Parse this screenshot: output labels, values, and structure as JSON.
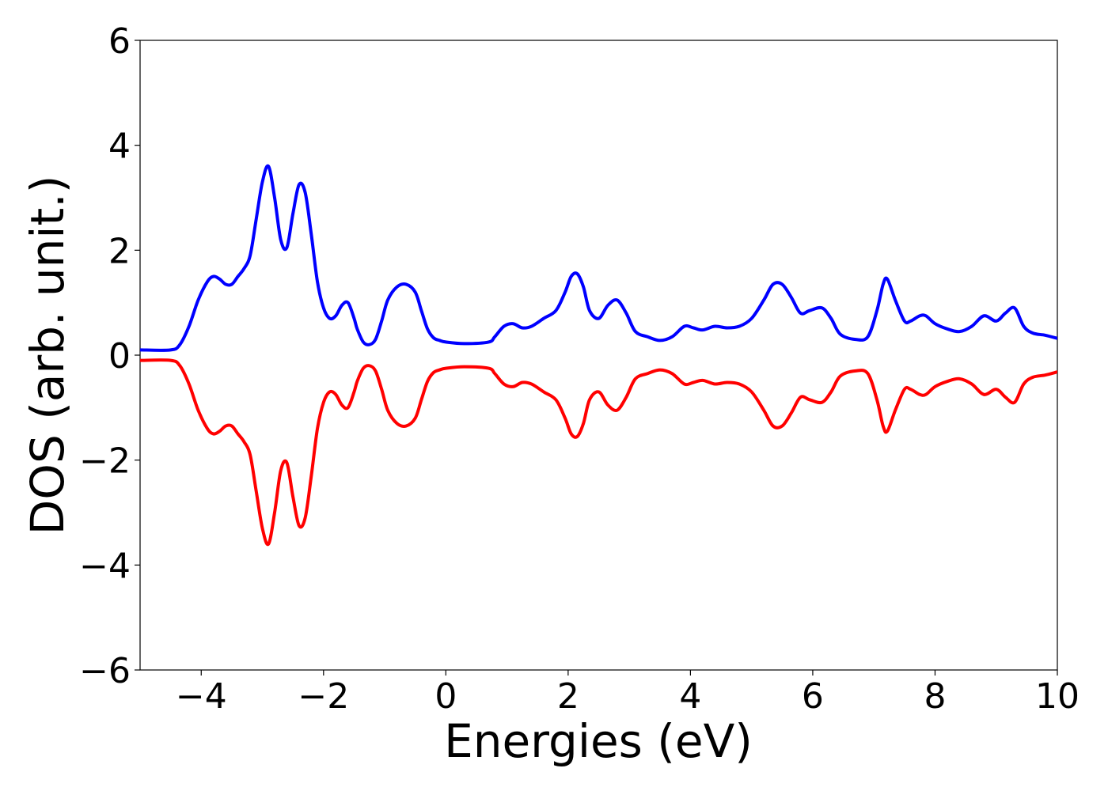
{
  "chart_data": {
    "type": "line",
    "title": "",
    "xlabel": "Energies (eV)",
    "ylabel": "DOS (arb. unit.)",
    "xlim": [
      -5,
      10
    ],
    "ylim": [
      -6,
      6
    ],
    "x_ticks": [
      -4,
      -2,
      0,
      2,
      4,
      6,
      8,
      10
    ],
    "x_tick_labels": [
      "−4",
      "−2",
      "0",
      "2",
      "4",
      "6",
      "8",
      "10"
    ],
    "y_ticks": [
      -6,
      -4,
      -2,
      0,
      2,
      4,
      6
    ],
    "y_tick_labels": [
      "−6",
      "−4",
      "−2",
      "0",
      "2",
      "4",
      "6"
    ],
    "grid": false,
    "legend": "none",
    "series": [
      {
        "color": "#0000ff",
        "x": [
          -5,
          -4.5,
          -4.35,
          -4.2,
          -4.05,
          -3.9,
          -3.8,
          -3.7,
          -3.6,
          -3.5,
          -3.4,
          -3.3,
          -3.2,
          -3.1,
          -3.0,
          -2.9,
          -2.8,
          -2.7,
          -2.6,
          -2.5,
          -2.4,
          -2.3,
          -2.2,
          -2.1,
          -2.0,
          -1.9,
          -1.8,
          -1.7,
          -1.6,
          -1.5,
          -1.45,
          -1.35,
          -1.25,
          -1.15,
          -1.05,
          -0.95,
          -0.8,
          -0.65,
          -0.5,
          -0.4,
          -0.3,
          -0.2,
          -0.1,
          0.0,
          0.3,
          0.7,
          0.8,
          0.95,
          1.1,
          1.25,
          1.4,
          1.6,
          1.8,
          1.95,
          2.05,
          2.15,
          2.25,
          2.35,
          2.5,
          2.65,
          2.8,
          2.95,
          3.1,
          3.3,
          3.5,
          3.7,
          3.9,
          4.05,
          4.2,
          4.4,
          4.6,
          4.8,
          5.0,
          5.2,
          5.35,
          5.5,
          5.65,
          5.8,
          5.95,
          6.15,
          6.3,
          6.45,
          6.7,
          6.9,
          7.05,
          7.15,
          7.22,
          7.35,
          7.5,
          7.6,
          7.75,
          7.85,
          8.0,
          8.2,
          8.4,
          8.6,
          8.8,
          9.0,
          9.15,
          9.3,
          9.45,
          9.6,
          9.8,
          10.0
        ],
        "y": [
          0.1,
          0.1,
          0.2,
          0.55,
          1.05,
          1.4,
          1.5,
          1.45,
          1.35,
          1.35,
          1.5,
          1.65,
          1.9,
          2.6,
          3.3,
          3.6,
          3.0,
          2.2,
          2.05,
          2.7,
          3.25,
          3.1,
          2.3,
          1.4,
          0.9,
          0.7,
          0.75,
          0.95,
          1.0,
          0.7,
          0.5,
          0.25,
          0.2,
          0.3,
          0.65,
          1.05,
          1.3,
          1.35,
          1.2,
          0.85,
          0.5,
          0.33,
          0.28,
          0.25,
          0.22,
          0.25,
          0.35,
          0.55,
          0.6,
          0.52,
          0.55,
          0.7,
          0.85,
          1.2,
          1.5,
          1.55,
          1.3,
          0.85,
          0.7,
          0.95,
          1.05,
          0.8,
          0.45,
          0.35,
          0.28,
          0.35,
          0.55,
          0.52,
          0.48,
          0.55,
          0.52,
          0.55,
          0.7,
          1.05,
          1.35,
          1.35,
          1.1,
          0.8,
          0.85,
          0.9,
          0.7,
          0.4,
          0.3,
          0.35,
          0.85,
          1.35,
          1.45,
          1.05,
          0.65,
          0.65,
          0.75,
          0.75,
          0.6,
          0.5,
          0.45,
          0.55,
          0.75,
          0.65,
          0.8,
          0.9,
          0.55,
          0.42,
          0.38,
          0.32
        ]
      },
      {
        "color": "#ff0000",
        "x": [
          -5,
          -4.5,
          -4.35,
          -4.2,
          -4.05,
          -3.9,
          -3.8,
          -3.7,
          -3.6,
          -3.5,
          -3.4,
          -3.3,
          -3.2,
          -3.1,
          -3.0,
          -2.9,
          -2.8,
          -2.7,
          -2.6,
          -2.5,
          -2.4,
          -2.3,
          -2.2,
          -2.1,
          -2.0,
          -1.9,
          -1.8,
          -1.7,
          -1.6,
          -1.5,
          -1.45,
          -1.35,
          -1.25,
          -1.15,
          -1.05,
          -0.95,
          -0.8,
          -0.65,
          -0.5,
          -0.4,
          -0.3,
          -0.2,
          -0.1,
          0.0,
          0.3,
          0.7,
          0.8,
          0.95,
          1.1,
          1.25,
          1.4,
          1.6,
          1.8,
          1.95,
          2.05,
          2.15,
          2.25,
          2.35,
          2.5,
          2.65,
          2.8,
          2.95,
          3.1,
          3.3,
          3.5,
          3.7,
          3.9,
          4.05,
          4.2,
          4.4,
          4.6,
          4.8,
          5.0,
          5.2,
          5.35,
          5.5,
          5.65,
          5.8,
          5.95,
          6.15,
          6.3,
          6.45,
          6.7,
          6.9,
          7.05,
          7.15,
          7.22,
          7.35,
          7.5,
          7.6,
          7.75,
          7.85,
          8.0,
          8.2,
          8.4,
          8.6,
          8.8,
          9.0,
          9.15,
          9.3,
          9.45,
          9.6,
          9.8,
          10.0
        ],
        "y": [
          -0.1,
          -0.1,
          -0.2,
          -0.55,
          -1.05,
          -1.4,
          -1.5,
          -1.45,
          -1.35,
          -1.35,
          -1.5,
          -1.65,
          -1.9,
          -2.6,
          -3.3,
          -3.6,
          -3.0,
          -2.2,
          -2.05,
          -2.7,
          -3.25,
          -3.1,
          -2.3,
          -1.4,
          -0.9,
          -0.7,
          -0.75,
          -0.95,
          -1.0,
          -0.7,
          -0.5,
          -0.25,
          -0.2,
          -0.3,
          -0.65,
          -1.05,
          -1.3,
          -1.35,
          -1.2,
          -0.85,
          -0.5,
          -0.33,
          -0.28,
          -0.25,
          -0.22,
          -0.25,
          -0.35,
          -0.55,
          -0.6,
          -0.52,
          -0.55,
          -0.7,
          -0.85,
          -1.2,
          -1.5,
          -1.55,
          -1.3,
          -0.85,
          -0.7,
          -0.95,
          -1.05,
          -0.8,
          -0.45,
          -0.35,
          -0.28,
          -0.35,
          -0.55,
          -0.52,
          -0.48,
          -0.55,
          -0.52,
          -0.55,
          -0.7,
          -1.05,
          -1.35,
          -1.35,
          -1.1,
          -0.8,
          -0.85,
          -0.9,
          -0.7,
          -0.4,
          -0.3,
          -0.35,
          -0.85,
          -1.35,
          -1.45,
          -1.05,
          -0.65,
          -0.65,
          -0.75,
          -0.75,
          -0.6,
          -0.5,
          -0.45,
          -0.55,
          -0.75,
          -0.65,
          -0.8,
          -0.9,
          -0.55,
          -0.42,
          -0.38,
          -0.32
        ]
      }
    ]
  }
}
